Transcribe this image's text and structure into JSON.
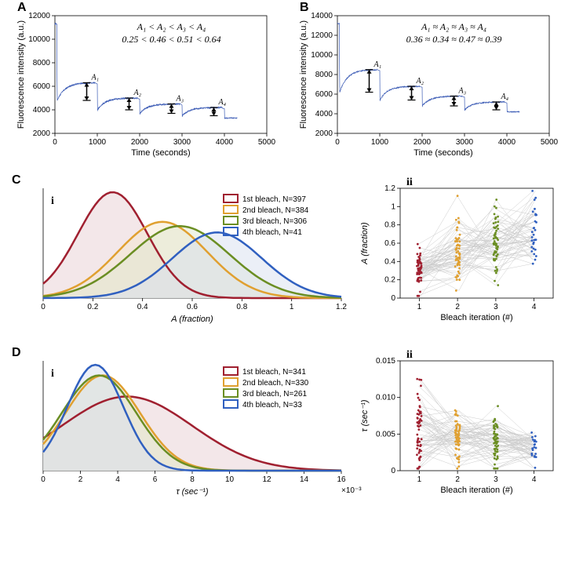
{
  "colors": {
    "bg": "#ffffff",
    "axis": "#000000",
    "trace_blue": "#3b5bb5",
    "series1": "#a02030",
    "series2": "#e0a030",
    "series3": "#6b8e23",
    "series4": "#3060c0",
    "fill1": "#e8d0d4",
    "fill2": "#f5e8d0",
    "fill3": "#e0e8d0",
    "fill4": "#d8e0f0",
    "grey_line": "#cccccc",
    "arrow_black": "#000000"
  },
  "panelA": {
    "label": "A",
    "formula1": "A₁ < A₂ < A₃ < A₄",
    "formula2": "0.25 < 0.46 < 0.51 < 0.64",
    "xlabel": "Time (seconds)",
    "ylabel": "Fluorescence intensity (a.u.)",
    "xlim": [
      0,
      5000
    ],
    "ylim": [
      2000,
      12000
    ],
    "xtick_step": 1000,
    "ytick_step": 2000,
    "arrows": [
      {
        "x": 750,
        "label": "A₁",
        "yTop": 6300,
        "yBot": 4800
      },
      {
        "x": 1750,
        "label": "A₂",
        "yTop": 5000,
        "yBot": 4000
      },
      {
        "x": 2750,
        "label": "A₃",
        "yTop": 4500,
        "yBot": 3700
      },
      {
        "x": 3750,
        "label": "A₄",
        "yTop": 4200,
        "yBot": 3500
      }
    ]
  },
  "panelB": {
    "label": "B",
    "formula1": "A₁ ≈ A₂ ≈ A₃ ≈ A₄",
    "formula2": "0.36 ≈ 0.34 ≈ 0.47 ≈ 0.39",
    "xlabel": "Time (seconds)",
    "ylabel": "Fluorescence intensity (a.u.)",
    "xlim": [
      0,
      5000
    ],
    "ylim": [
      2000,
      14000
    ],
    "xtick_step": 1000,
    "ytick_step": 2000,
    "arrows": [
      {
        "x": 750,
        "label": "A₁",
        "yTop": 8500,
        "yBot": 6200
      },
      {
        "x": 1750,
        "label": "A₂",
        "yTop": 6800,
        "yBot": 5400
      },
      {
        "x": 2750,
        "label": "A₃",
        "yTop": 5800,
        "yBot": 4800
      },
      {
        "x": 3750,
        "label": "A₄",
        "yTop": 5200,
        "yBot": 4400
      }
    ]
  },
  "panelC": {
    "label": "C",
    "sub_i": "i",
    "sub_ii": "ii",
    "i": {
      "xlabel": "A (fraction)",
      "xlim": [
        0,
        1.2
      ],
      "xtick_step": 0.2,
      "legend": [
        {
          "label": "1st bleach, N=397",
          "color": "#a02030"
        },
        {
          "label": "2nd bleach, N=384",
          "color": "#e0a030"
        },
        {
          "label": "3rd bleach, N=306",
          "color": "#6b8e23"
        },
        {
          "label": "4th bleach, N=41",
          "color": "#3060c0"
        }
      ],
      "curves": [
        {
          "color": "#a02030",
          "fill": "#e8d0d4",
          "mode": 0.28,
          "spread": 0.14,
          "peak": 1.0
        },
        {
          "color": "#e0a030",
          "fill": "#f5e8d0",
          "mode": 0.48,
          "spread": 0.18,
          "peak": 0.72
        },
        {
          "color": "#6b8e23",
          "fill": "#e0e8d0",
          "mode": 0.55,
          "spread": 0.2,
          "peak": 0.68
        },
        {
          "color": "#3060c0",
          "fill": "#d8e0f0",
          "mode": 0.7,
          "spread": 0.18,
          "peak": 0.62
        }
      ]
    },
    "ii": {
      "xlabel": "Bleach iteration (#)",
      "ylabel": "A (fraction)",
      "xlim": [
        0.5,
        4.5
      ],
      "ylim": [
        0,
        1.2
      ],
      "ytick_step": 0.2,
      "groups": [
        {
          "x": 1,
          "color": "#a02030",
          "n": 60,
          "mean": 0.3,
          "sd": 0.12
        },
        {
          "x": 2,
          "color": "#e0a030",
          "n": 60,
          "mean": 0.5,
          "sd": 0.22
        },
        {
          "x": 3,
          "color": "#6b8e23",
          "n": 60,
          "mean": 0.58,
          "sd": 0.22
        },
        {
          "x": 4,
          "color": "#3060c0",
          "n": 30,
          "mean": 0.7,
          "sd": 0.2
        }
      ]
    }
  },
  "panelD": {
    "label": "D",
    "sub_i": "i",
    "sub_ii": "ii",
    "i": {
      "xlabel": "τ  (sec⁻¹)",
      "xlim": [
        0,
        16
      ],
      "xtick_step": 2,
      "x_mult_label": "×10⁻³",
      "legend": [
        {
          "label": "1st bleach, N=341",
          "color": "#a02030"
        },
        {
          "label": "2nd bleach, N=330",
          "color": "#e0a030"
        },
        {
          "label": "3rd bleach, N=261",
          "color": "#6b8e23"
        },
        {
          "label": "4th bleach, N=33",
          "color": "#3060c0"
        }
      ],
      "curves": [
        {
          "color": "#a02030",
          "fill": "#e8d0d4",
          "mode": 4.5,
          "spread": 3.5,
          "peak": 0.7
        },
        {
          "color": "#e0a030",
          "fill": "#f5e8d0",
          "mode": 3.2,
          "spread": 2.0,
          "peak": 0.9
        },
        {
          "color": "#6b8e23",
          "fill": "#e0e8d0",
          "mode": 3.0,
          "spread": 2.0,
          "peak": 0.9
        },
        {
          "color": "#3060c0",
          "fill": "#d8e0f0",
          "mode": 2.8,
          "spread": 1.5,
          "peak": 1.0
        }
      ]
    },
    "ii": {
      "xlabel": "Bleach iteration (#)",
      "ylabel": "τ  (sec⁻¹)",
      "xlim": [
        0.5,
        4.5
      ],
      "ylim": [
        0,
        0.015
      ],
      "ytick_step": 0.005,
      "groups": [
        {
          "x": 1,
          "color": "#a02030",
          "n": 60,
          "mean": 0.006,
          "sd": 0.0035
        },
        {
          "x": 2,
          "color": "#e0a030",
          "n": 60,
          "mean": 0.0045,
          "sd": 0.002
        },
        {
          "x": 3,
          "color": "#6b8e23",
          "n": 60,
          "mean": 0.004,
          "sd": 0.002
        },
        {
          "x": 4,
          "color": "#3060c0",
          "n": 20,
          "mean": 0.003,
          "sd": 0.0015
        }
      ]
    }
  }
}
